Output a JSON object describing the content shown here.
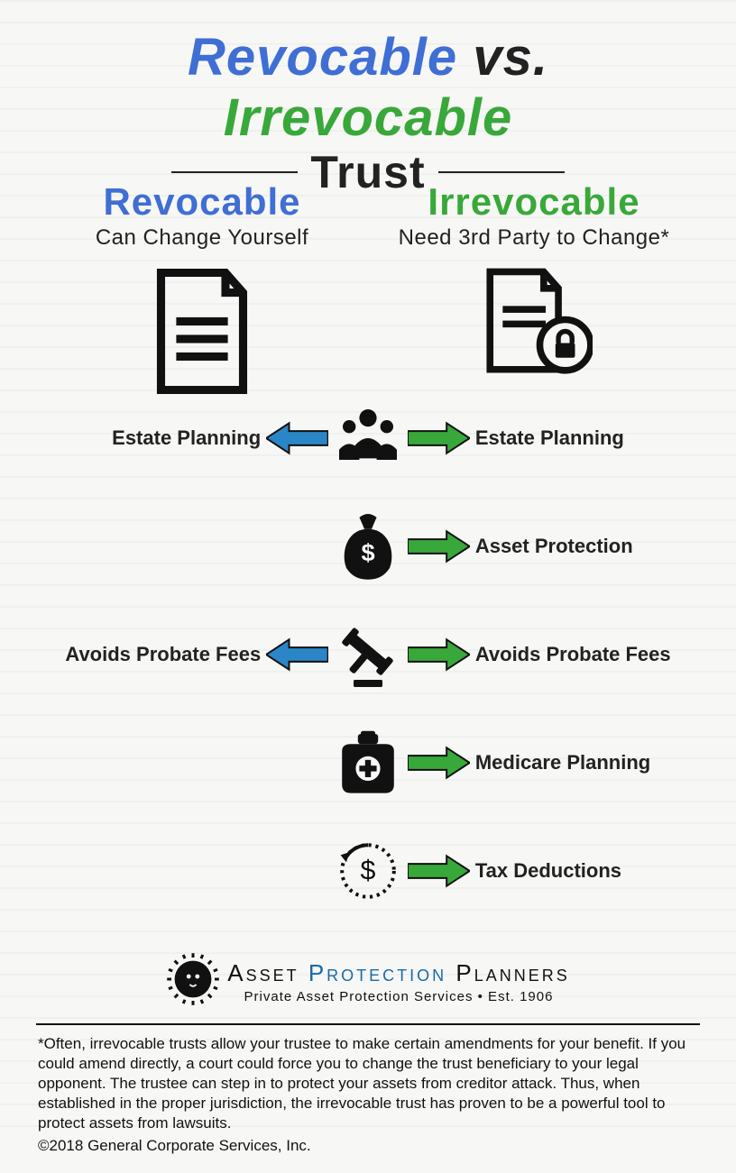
{
  "title": {
    "revocable": "Revocable",
    "vs": "vs.",
    "irrevocable": "Irrevocable",
    "line2": "Trust"
  },
  "columns": {
    "left": {
      "title": "Revocable",
      "subtitle": "Can Change Yourself",
      "title_color": "#3f6ed4"
    },
    "right": {
      "title": "Irrevocable",
      "subtitle": "Need 3rd Party to Change*",
      "title_color": "#39a83a"
    }
  },
  "arrows": {
    "left_color": "#2a86c7",
    "right_color": "#39a83a",
    "stroke": "#111"
  },
  "rows": [
    {
      "id": "estate",
      "icon": "people",
      "left": "Estate Planning",
      "right": "Estate Planning",
      "left_arrow": true,
      "right_arrow": true
    },
    {
      "id": "asset",
      "icon": "moneybag",
      "left": "",
      "right": "Asset Protection",
      "left_arrow": false,
      "right_arrow": true
    },
    {
      "id": "probate",
      "icon": "gavel",
      "left": "Avoids Probate Fees",
      "right": "Avoids Probate Fees",
      "left_arrow": true,
      "right_arrow": true
    },
    {
      "id": "medicare",
      "icon": "medical",
      "left": "",
      "right": "Medicare Planning",
      "left_arrow": false,
      "right_arrow": true
    },
    {
      "id": "tax",
      "icon": "refund",
      "left": "",
      "right": "Tax Deductions",
      "left_arrow": false,
      "right_arrow": true
    }
  ],
  "logo": {
    "main_a": "Asset ",
    "main_b": "Protection",
    "main_c": " Planners",
    "sub": "Private Asset Protection Services • Est. 1906"
  },
  "footnote": "*Often, irrevocable trusts allow your trustee to make certain amendments for your benefit. If you could amend directly, a court could force you to change the trust beneficiary to your legal opponent. The trustee can step in to protect your assets from creditor attack. Thus, when established in the proper jurisdiction, the irrevocable trust has proven to be a powerful tool to protect assets from lawsuits.",
  "copyright": "©2018 General Corporate Services, Inc.",
  "colors": {
    "icon_fill": "#111111",
    "icon_stroke": "#111111",
    "bg": "#f7f7f5"
  }
}
